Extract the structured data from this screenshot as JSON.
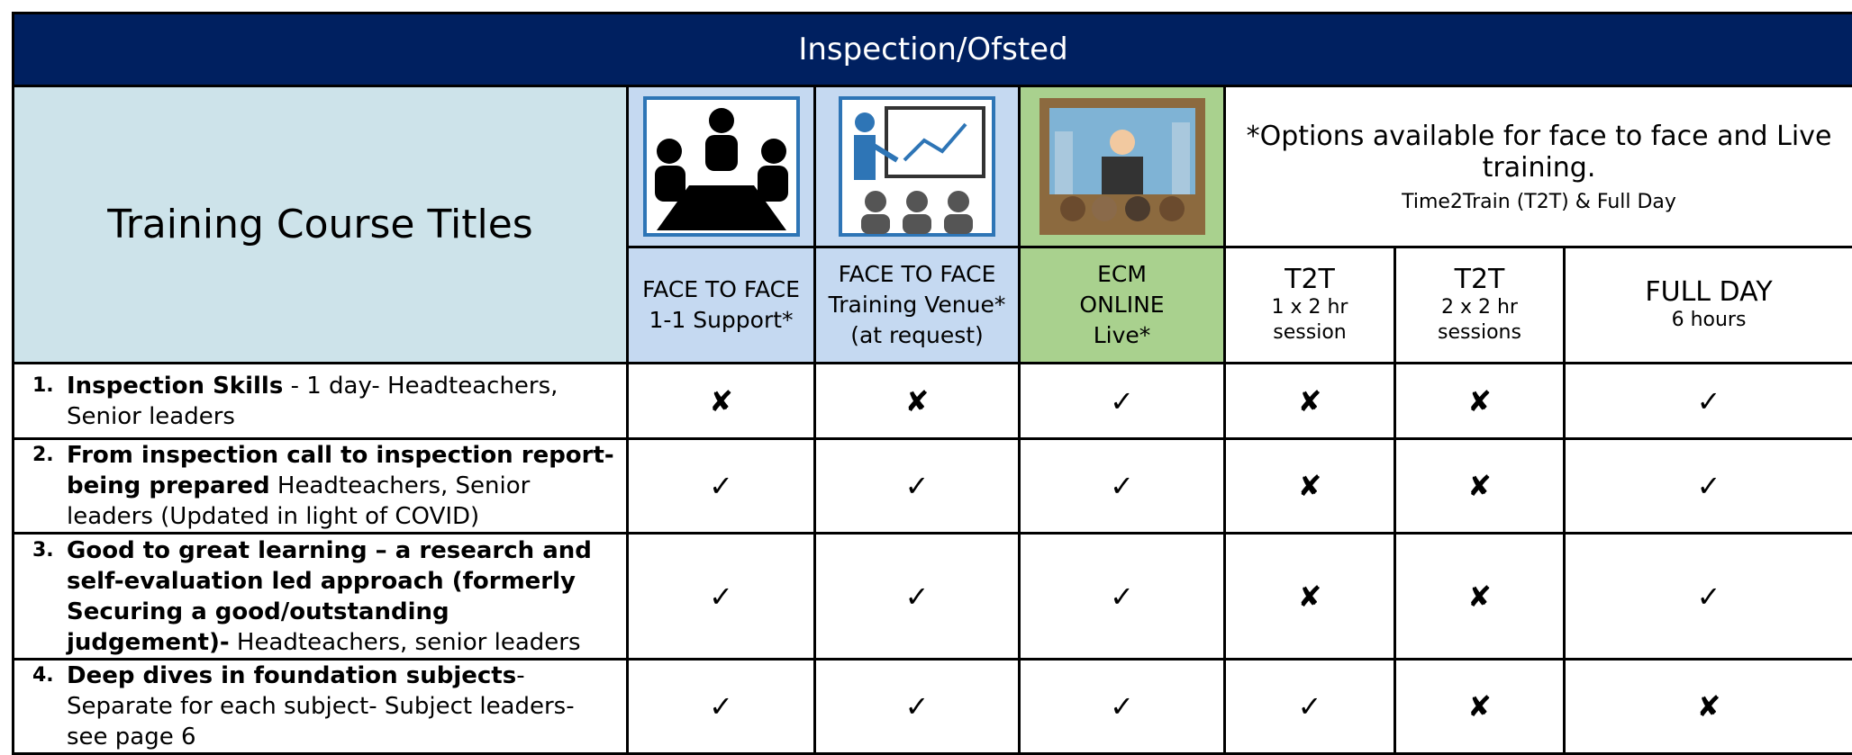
{
  "header": {
    "title": "Inspection/Ofsted"
  },
  "table": {
    "corner": "Training Course Titles",
    "note": [
      "*Options available for face to face and Live training.",
      "Time2Train (T2T) & Full Day"
    ],
    "columns": [
      [
        "FACE TO FACE",
        "1-1 Support*"
      ],
      [
        "FACE TO FACE",
        "Training Venue*",
        "(at request)"
      ],
      [
        "ECM",
        "ONLINE",
        "Live*"
      ],
      [
        "T2T",
        "1 x 2 hr",
        "session"
      ],
      [
        "T2T",
        "2 x 2 hr",
        "sessions"
      ],
      [
        "FULL DAY",
        "6 hours"
      ]
    ],
    "rows": [
      {
        "number": "1.",
        "title": "Inspection Skills",
        "detail": " - 1 day- Headteachers, Senior leaders",
        "marks": [
          "✘",
          "✘",
          "✓",
          "✘",
          "✘",
          "✓"
        ]
      },
      {
        "number": "2.",
        "title": "From inspection call to inspection report-being prepared",
        "detail": " Headteachers, Senior leaders (Updated in light of COVID)",
        "marks": [
          "✓",
          "✓",
          "✓",
          "✘",
          "✘",
          "✓"
        ]
      },
      {
        "number": "3.",
        "title": "Good to great learning – a research and self-evaluation led approach (formerly Securing a good/outstanding judgement)-",
        "detail": " Headteachers, senior leaders",
        "marks": [
          "✓",
          "✓",
          "✓",
          "✘",
          "✘",
          "✓"
        ]
      },
      {
        "number": "4.",
        "title": "Deep dives in foundation subjects",
        "detail": "- Separate for each subject- Subject leaders- see page 6",
        "marks": [
          "✓",
          "✓",
          "✓",
          "✓",
          "✘",
          "✘"
        ]
      }
    ]
  }
}
